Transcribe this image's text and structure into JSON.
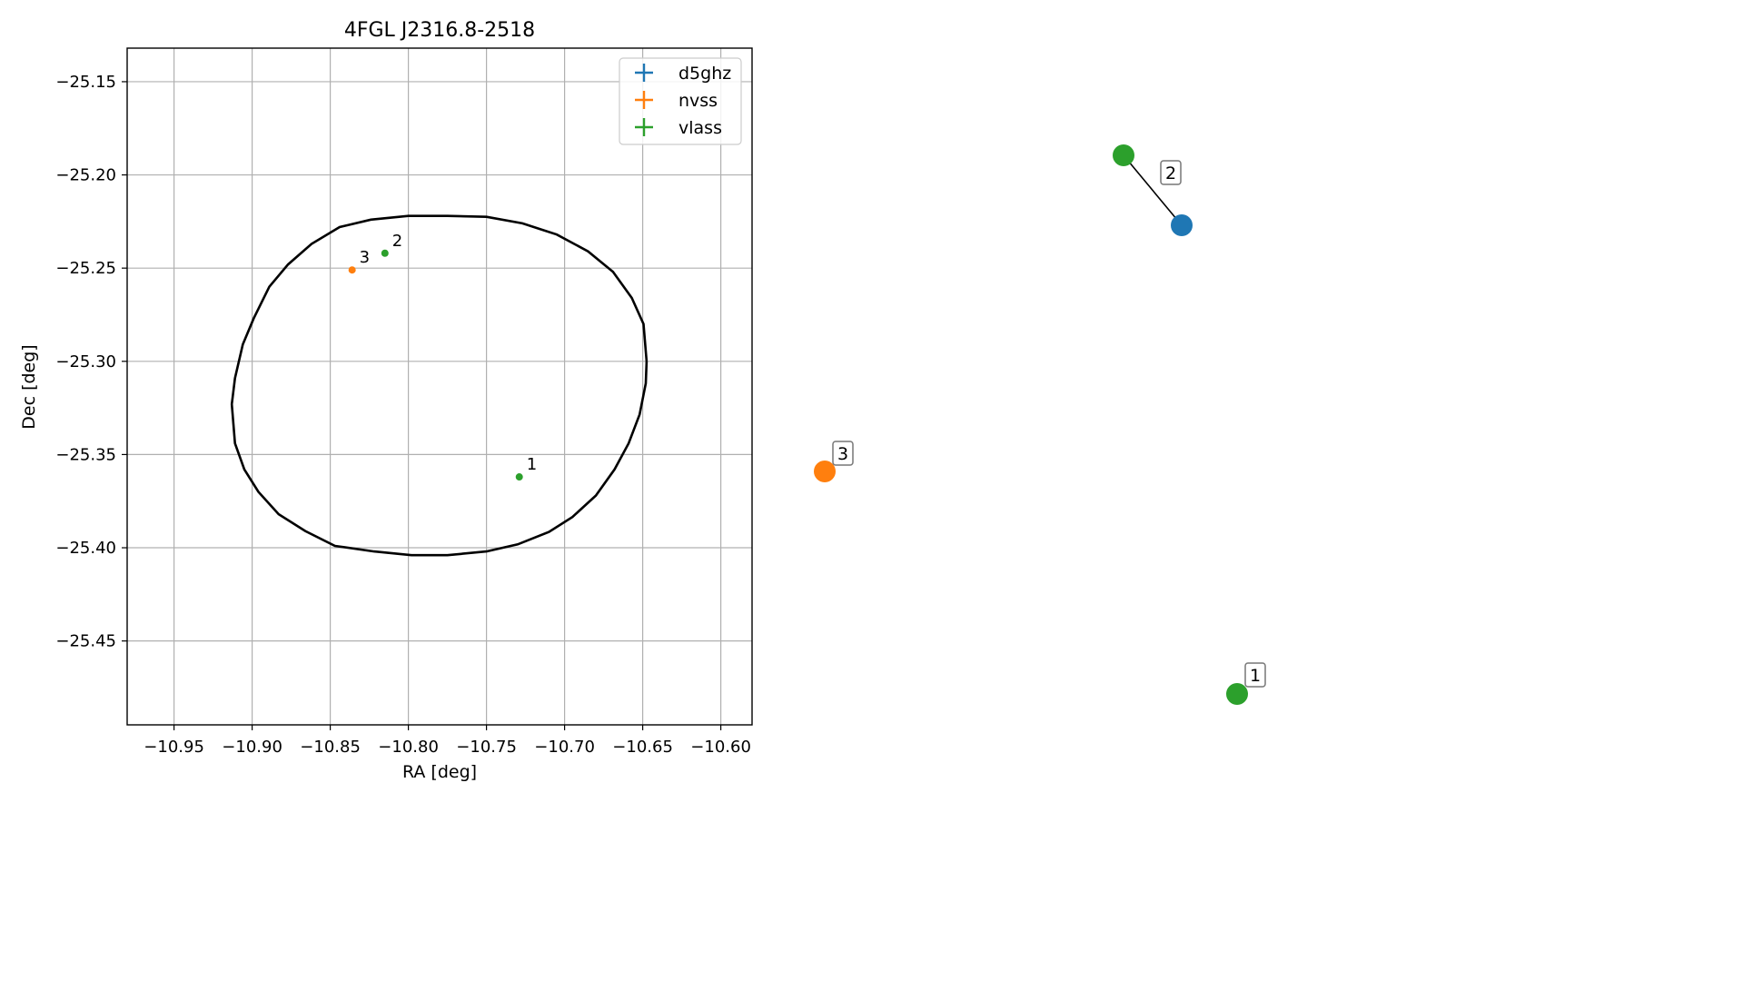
{
  "chart_data": [
    {
      "type": "scatter",
      "title": "4FGL J2316.8-2518",
      "xlabel": "RA [deg]",
      "ylabel": "Dec [deg]",
      "xlim": [
        -10.98,
        -10.58
      ],
      "ylim": [
        -25.495,
        -25.132
      ],
      "xticks": [
        -10.95,
        -10.9,
        -10.85,
        -10.8,
        -10.75,
        -10.7,
        -10.65,
        -10.6
      ],
      "yticks": [
        -25.15,
        -25.2,
        -25.25,
        -25.3,
        -25.35,
        -25.4,
        -25.45
      ],
      "xtick_labels": [
        "−10.95",
        "−10.90",
        "−10.85",
        "−10.80",
        "−10.75",
        "−10.70",
        "−10.65",
        "−10.60"
      ],
      "ytick_labels": [
        "−25.15",
        "−25.20",
        "−25.25",
        "−25.30",
        "−25.35",
        "−25.40",
        "−25.45"
      ],
      "grid": true,
      "legend_placement": "top-right",
      "legend": [
        {
          "name": "d5ghz",
          "color": "#1f77b4"
        },
        {
          "name": "nvss",
          "color": "#ff7f0e"
        },
        {
          "name": "vlass",
          "color": "#2ca02c"
        }
      ],
      "points": [
        {
          "label": "1",
          "catalog": "vlass",
          "x": -10.729,
          "y": -25.362,
          "color": "#2ca02c"
        },
        {
          "label": "2",
          "catalog": "vlass",
          "x": -10.815,
          "y": -25.242,
          "color": "#2ca02c"
        },
        {
          "label": "3",
          "catalog": "nvss",
          "x": -10.836,
          "y": -25.251,
          "color": "#ff7f0e"
        }
      ],
      "ellipse": {
        "center": [
          -10.779,
          -25.313
        ],
        "polyline": [
          [
            -10.6475,
            -25.3
          ],
          [
            -10.648,
            -25.3118
          ],
          [
            -10.652,
            -25.3285
          ],
          [
            -10.659,
            -25.344
          ],
          [
            -10.668,
            -25.358
          ],
          [
            -10.68,
            -25.372
          ],
          [
            -10.695,
            -25.3835
          ],
          [
            -10.71,
            -25.3915
          ],
          [
            -10.73,
            -25.3982
          ],
          [
            -10.75,
            -25.402
          ],
          [
            -10.775,
            -25.404
          ],
          [
            -10.798,
            -25.404
          ],
          [
            -10.822,
            -25.402
          ],
          [
            -10.847,
            -25.399
          ],
          [
            -10.866,
            -25.391
          ],
          [
            -10.883,
            -25.382
          ],
          [
            -10.896,
            -25.37
          ],
          [
            -10.905,
            -25.358
          ],
          [
            -10.911,
            -25.344
          ],
          [
            -10.913,
            -25.323
          ],
          [
            -10.911,
            -25.309
          ],
          [
            -10.906,
            -25.291
          ],
          [
            -10.899,
            -25.277
          ],
          [
            -10.889,
            -25.26
          ],
          [
            -10.877,
            -25.248
          ],
          [
            -10.862,
            -25.237
          ],
          [
            -10.844,
            -25.228
          ],
          [
            -10.824,
            -25.224
          ],
          [
            -10.8,
            -25.222
          ],
          [
            -10.775,
            -25.222
          ],
          [
            -10.75,
            -25.2225
          ],
          [
            -10.727,
            -25.226
          ],
          [
            -10.705,
            -25.232
          ],
          [
            -10.685,
            -25.241
          ],
          [
            -10.669,
            -25.252
          ],
          [
            -10.657,
            -25.266
          ],
          [
            -10.6495,
            -25.28
          ],
          [
            -10.6475,
            -25.3
          ]
        ]
      }
    },
    {
      "type": "scatter",
      "title": "",
      "nodes": [
        {
          "id": "2",
          "color": "#2ca02c",
          "catalog": "vlass",
          "pos": [
            1237,
            171
          ],
          "label_box": "2"
        },
        {
          "id": "d5",
          "color": "#1f77b4",
          "catalog": "d5ghz",
          "pos": [
            1301,
            248
          ],
          "label_box": ""
        },
        {
          "id": "3",
          "color": "#ff7f0e",
          "catalog": "nvss",
          "pos": [
            908,
            519
          ],
          "label_box": "3"
        },
        {
          "id": "1",
          "color": "#2ca02c",
          "catalog": "vlass",
          "pos": [
            1362,
            764
          ],
          "label_box": "1"
        }
      ],
      "edges": [
        [
          "2",
          "d5"
        ]
      ]
    }
  ]
}
